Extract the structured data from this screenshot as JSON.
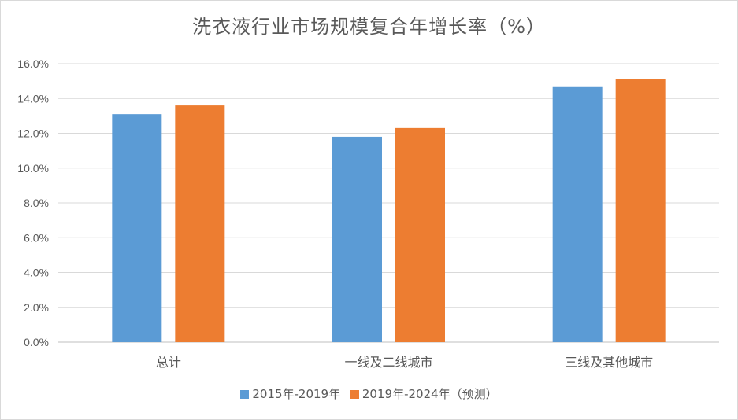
{
  "chart_data": {
    "type": "bar",
    "title": "洗衣液行业市场规模复合年增长率（%）",
    "categories": [
      "总计",
      "一线及二线城市",
      "三线及其他城市"
    ],
    "series": [
      {
        "name": "2015年-2019年",
        "color": "#5b9bd5",
        "values": [
          13.1,
          11.8,
          14.7
        ]
      },
      {
        "name": "2019年-2024年（预测）",
        "color": "#ed7d31",
        "values": [
          13.6,
          12.3,
          15.1
        ]
      }
    ],
    "y_ticks": [
      "0.0%",
      "2.0%",
      "4.0%",
      "6.0%",
      "8.0%",
      "10.0%",
      "12.0%",
      "14.0%",
      "16.0%"
    ],
    "ylim": [
      0,
      16
    ],
    "y_format": "percent",
    "grid": true,
    "legend_position": "bottom"
  }
}
